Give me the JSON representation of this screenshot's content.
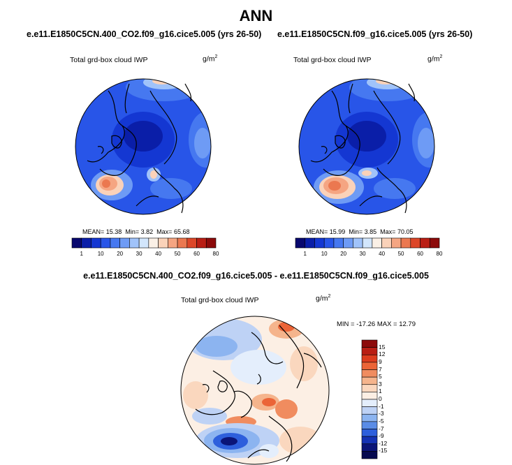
{
  "title": "ANN",
  "panels": [
    {
      "case_title": "e.e11.E1850C5CN.400_CO2.f09_g16.cice5.005 (yrs 26-50)",
      "variable": "Total grd-box cloud IWP",
      "units": "g/m",
      "units_exp": "2",
      "mean_label": "MEAN=",
      "mean": "15.38",
      "min_label": "Min=",
      "min": "3.82",
      "max_label": "Max=",
      "max": "65.68"
    },
    {
      "case_title": "e.e11.E1850C5CN.f09_g16.cice5.005 (yrs 26-50)",
      "variable": "Total grd-box cloud IWP",
      "units": "g/m",
      "units_exp": "2",
      "mean_label": "MEAN=",
      "mean": "15.99",
      "min_label": "Min=",
      "min": "3.85",
      "max_label": "Max=",
      "max": "70.05"
    }
  ],
  "diff_panel": {
    "case_title": "e.e11.E1850C5CN.400_CO2.f09_g16.cice5.005 - e.e11.E1850C5CN.f09_g16.cice5.005",
    "variable": "Total grd-box cloud IWP",
    "units": "g/m",
    "units_exp": "2",
    "minmax": "MIN = -17.26 MAX =  12.79"
  },
  "abs_colorbar": {
    "ticks": [
      "1",
      "10",
      "20",
      "30",
      "40",
      "50",
      "60",
      "80"
    ],
    "colors": [
      "#08086e",
      "#0a1ea8",
      "#1437d2",
      "#2855e8",
      "#4678f0",
      "#6e9bf5",
      "#a0c3fa",
      "#d2e6fc",
      "#faf0e6",
      "#fad2b9",
      "#f5a582",
      "#eb7850",
      "#dc4628",
      "#b91e14",
      "#8c0a0a"
    ]
  },
  "diff_colorbar": {
    "ticks": [
      "15",
      "12",
      "9",
      "7",
      "5",
      "3",
      "1",
      "0",
      "-1",
      "-3",
      "-5",
      "-7",
      "-9",
      "-12",
      "-15"
    ],
    "colors": [
      "#8c0a0a",
      "#b91e14",
      "#dc3c1e",
      "#eb6437",
      "#f08c5f",
      "#f5b48c",
      "#fad7be",
      "#fcefe4",
      "#e4eefc",
      "#bed2f5",
      "#8cb4f0",
      "#5a8ce6",
      "#2d5fdc",
      "#1432b4",
      "#0a1478",
      "#060a50"
    ]
  }
}
